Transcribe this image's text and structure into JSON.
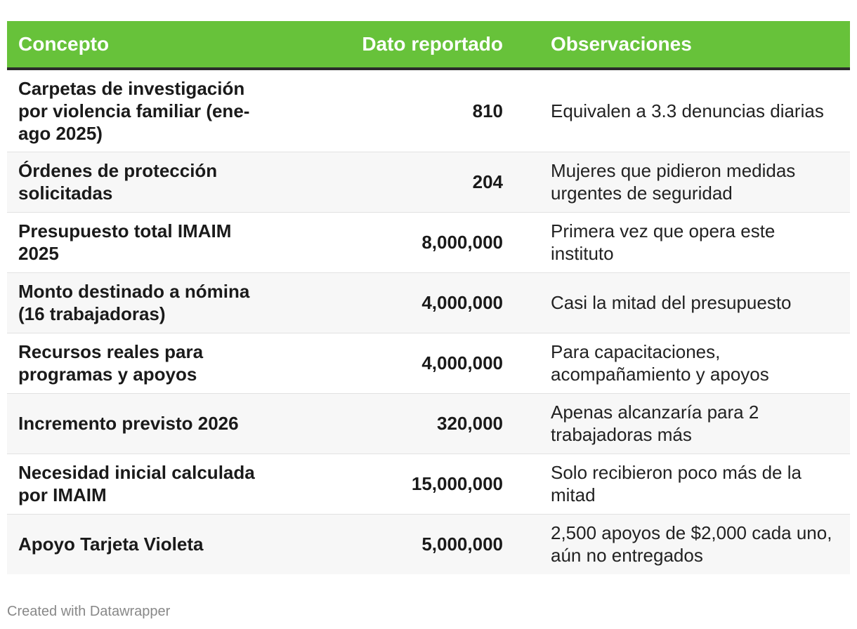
{
  "chart_data": {
    "type": "table",
    "columns": [
      "Concepto",
      "Dato reportado",
      "Observaciones"
    ],
    "rows": [
      {
        "concept": "Carpetas de investigación por violencia familiar (ene-ago 2025)",
        "value": "810",
        "note": "Equivalen a 3.3 denuncias diarias"
      },
      {
        "concept": "Órdenes de protección solicitadas",
        "value": "204",
        "note": "Mujeres que pidieron medidas urgentes de seguridad"
      },
      {
        "concept": "Presupuesto total IMAIM 2025",
        "value": "8,000,000",
        "note": "Primera vez que opera este instituto"
      },
      {
        "concept": "Monto destinado a nómina (16 trabajadoras)",
        "value": "4,000,000",
        "note": "Casi la mitad del presupuesto"
      },
      {
        "concept": "Recursos reales para programas y apoyos",
        "value": "4,000,000",
        "note": "Para capacitaciones, acompañamiento y apoyos"
      },
      {
        "concept": "Incremento previsto 2026",
        "value": "320,000",
        "note": "Apenas alcanzaría para 2 trabajadoras más"
      },
      {
        "concept": "Necesidad inicial calculada por IMAIM",
        "value": "15,000,000",
        "note": "Solo recibieron poco más de la mitad"
      },
      {
        "concept": "Apoyo Tarjeta Violeta",
        "value": "5,000,000",
        "note": "2,500 apoyos de $2,000 cada uno, aún no entregados"
      }
    ],
    "header_color": "#67c23a",
    "header_text_color": "#ffffff"
  },
  "footer": {
    "credit": "Created with Datawrapper"
  }
}
